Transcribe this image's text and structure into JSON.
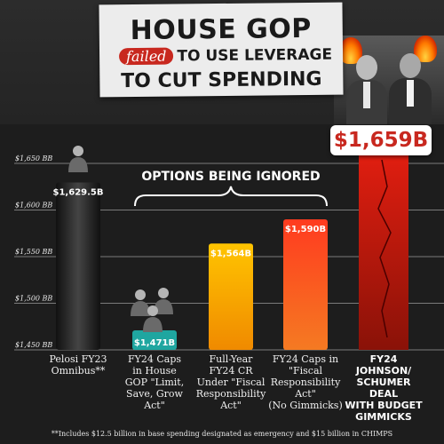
{
  "header": {
    "title_line1": "HOUSE GOP",
    "title_failed": "failed",
    "title_line2_rest": "TO USE LEVERAGE",
    "title_line3": "TO CUT SPENDING"
  },
  "highlight_value": "$1,659B",
  "options_label": "OPTIONS BEING IGNORED",
  "footnote": "**Includes $12.5 billion in base spending designated as emergency and $15 billion in CHIMPS",
  "chart_data": {
    "type": "bar",
    "title": "",
    "xlabel": "",
    "ylabel": "",
    "ylim": [
      1450,
      1650
    ],
    "yticks": [
      1450,
      1500,
      1550,
      1600,
      1650
    ],
    "ytick_labels": [
      "$1,450 BB",
      "$1,500 BB",
      "$1,550 BB",
      "$1,600 BB",
      "$1,650 BB"
    ],
    "grid": true,
    "categories": [
      "Pelosi FY23 Omnibus**",
      "FY24 Caps in House GOP \"Limit, Save, Grow Act\"",
      "Full-Year FY24 CR Under \"Fiscal Responsibility Act\"",
      "FY24 Caps in \"Fiscal Responsibility Act\" (No Gimmicks)",
      "FY24 JOHNSON/ SCHUMER DEAL WITH BUDGET GIMMICKS"
    ],
    "category_lines": [
      [
        "Pelosi FY23",
        "Omnibus**"
      ],
      [
        "FY24 Caps",
        "in House",
        "GOP \"Limit,",
        "Save, Grow",
        "Act\""
      ],
      [
        "Full-Year",
        "FY24 CR",
        "Under \"Fiscal",
        "Responsibility",
        "Act\""
      ],
      [
        "FY24 Caps in",
        "\"Fiscal",
        "Responsibility",
        "Act\"",
        "(No Gimmicks)"
      ],
      [
        "FY24",
        "JOHNSON/",
        "SCHUMER DEAL",
        "WITH BUDGET",
        "GIMMICKS"
      ]
    ],
    "values": [
      1629.5,
      1471,
      1564,
      1590,
      1659
    ],
    "value_labels": [
      "$1,629.5B",
      "$1,471B",
      "$1,564B",
      "$1,590B",
      "$1,659B"
    ],
    "colors": [
      "#2a2a2a",
      "#1fa6a0",
      "#f5b400",
      "#f04a24",
      "#c8281f"
    ]
  }
}
